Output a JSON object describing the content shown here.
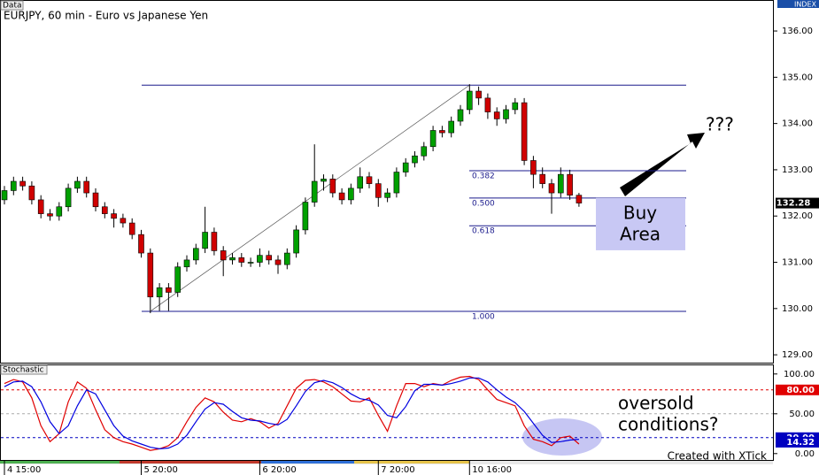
{
  "chart_data": [
    {
      "type": "candlestick",
      "panel_label": "Data",
      "axis_label": "INDEX",
      "title": "EURJPY, 60 min - Euro vs Japanese Yen",
      "ylim": [
        128.83,
        136.67
      ],
      "yticks": [
        {
          "value": 129,
          "label": "129.00"
        },
        {
          "value": 130,
          "label": "130.00"
        },
        {
          "value": 131,
          "label": "131.00"
        },
        {
          "value": 132,
          "label": "132.00"
        },
        {
          "value": 133,
          "label": "133.00"
        },
        {
          "value": 134,
          "label": "134.00"
        },
        {
          "value": 135,
          "label": "135.00"
        },
        {
          "value": 136,
          "label": "136.00"
        }
      ],
      "up_color": "#00a000",
      "down_color": "#d00000",
      "open": [
        132.35,
        132.55,
        132.75,
        132.65,
        132.35,
        132.05,
        132.0,
        132.2,
        132.6,
        132.75,
        132.5,
        132.2,
        132.05,
        131.95,
        131.85,
        131.6,
        131.2,
        130.25,
        130.45,
        130.35,
        130.9,
        131.05,
        131.3,
        131.65,
        131.25,
        131.05,
        131.1,
        131.0,
        131.0,
        131.15,
        131.05,
        130.95,
        131.2,
        131.7,
        132.3,
        132.75,
        132.8,
        132.5,
        132.35,
        132.6,
        132.85,
        132.7,
        132.4,
        132.5,
        132.95,
        133.15,
        133.3,
        133.5,
        133.85,
        133.8,
        134.05,
        134.3,
        134.7,
        134.55,
        134.25,
        134.1,
        134.3,
        134.45,
        133.2,
        132.9,
        132.7,
        132.5,
        132.9,
        132.45
      ],
      "high": [
        132.65,
        132.85,
        132.85,
        132.75,
        132.45,
        132.15,
        132.3,
        132.7,
        132.85,
        132.85,
        132.6,
        132.3,
        132.15,
        132.05,
        131.95,
        131.7,
        131.3,
        130.55,
        130.55,
        131.0,
        131.15,
        131.4,
        132.2,
        131.75,
        131.35,
        131.2,
        131.2,
        131.1,
        131.3,
        131.25,
        131.15,
        131.3,
        131.8,
        132.4,
        133.55,
        132.9,
        132.9,
        132.6,
        132.7,
        133.05,
        132.95,
        132.8,
        132.6,
        133.05,
        133.25,
        133.4,
        133.6,
        133.95,
        133.95,
        134.15,
        134.4,
        134.85,
        134.8,
        134.65,
        134.35,
        134.4,
        134.55,
        134.55,
        133.3,
        133.05,
        132.8,
        133.05,
        133.0,
        132.5
      ],
      "low": [
        132.25,
        132.45,
        132.55,
        132.25,
        131.95,
        131.9,
        131.9,
        132.1,
        132.5,
        132.4,
        132.1,
        131.95,
        131.75,
        131.75,
        131.5,
        131.1,
        129.9,
        129.95,
        129.95,
        130.25,
        130.8,
        130.95,
        131.2,
        131.15,
        130.7,
        130.95,
        130.9,
        130.9,
        130.9,
        130.95,
        130.75,
        130.85,
        131.1,
        131.6,
        132.2,
        132.55,
        132.4,
        132.25,
        132.25,
        132.5,
        132.6,
        132.2,
        132.3,
        132.4,
        132.85,
        133.05,
        133.2,
        133.4,
        133.7,
        133.7,
        133.95,
        134.2,
        134.4,
        134.1,
        133.95,
        134.0,
        134.2,
        133.1,
        132.6,
        132.6,
        132.05,
        132.4,
        132.35,
        132.2
      ],
      "close": [
        132.55,
        132.75,
        132.65,
        132.35,
        132.05,
        132.0,
        132.2,
        132.6,
        132.75,
        132.5,
        132.2,
        132.05,
        131.95,
        131.85,
        131.6,
        131.2,
        130.25,
        130.45,
        130.35,
        130.9,
        131.05,
        131.3,
        131.65,
        131.25,
        131.05,
        131.1,
        131.0,
        131.0,
        131.15,
        131.05,
        130.95,
        131.2,
        131.7,
        132.3,
        132.75,
        132.8,
        132.5,
        132.35,
        132.6,
        132.85,
        132.7,
        132.4,
        132.5,
        132.95,
        133.15,
        133.3,
        133.5,
        133.85,
        133.8,
        134.05,
        134.3,
        134.7,
        134.55,
        134.25,
        134.1,
        134.3,
        134.45,
        133.2,
        132.9,
        132.7,
        132.5,
        132.9,
        132.45,
        132.28
      ],
      "last_price": {
        "value": 132.28,
        "label": "132.28"
      },
      "fib_lines": {
        "values": [
          134.83,
          132.98,
          132.39,
          131.79,
          129.94
        ],
        "labels": [
          null,
          "0.382",
          "0.500",
          "0.618",
          "1.000"
        ],
        "color": "#1a1a8c"
      },
      "trendline": {
        "x": [
          16,
          51
        ],
        "values": [
          129.94,
          134.83
        ]
      },
      "buy_area": {
        "label_lines": [
          "Buy",
          "Area"
        ],
        "top": 132.39,
        "bottom": 131.26,
        "color": "#c8c8f4"
      },
      "annotation": "???"
    },
    {
      "type": "line",
      "panel_label": "Stochastic",
      "ylim": [
        -8,
        112
      ],
      "yticks": [
        {
          "value": 0,
          "label": "0.00"
        },
        {
          "value": 50,
          "label": "50.00"
        },
        {
          "value": 100,
          "label": "100.00"
        }
      ],
      "ref_lines": [
        {
          "value": 80,
          "color": "#e00000"
        },
        {
          "value": 50,
          "color": "#aaaaaa"
        },
        {
          "value": 20,
          "color": "#0000c0"
        }
      ],
      "tags": [
        {
          "value": 80,
          "label": "80.00",
          "color": "#e00000"
        },
        {
          "value": 20,
          "label": "20.00",
          "color": "#0000c0"
        },
        {
          "value": 14.32,
          "label": "14.32",
          "color": "#0000c0"
        }
      ],
      "categories": [
        "4 15:00",
        null,
        null,
        null,
        null,
        null,
        null,
        null,
        null,
        null,
        null,
        null,
        null,
        null,
        null,
        "5 20:00",
        null,
        null,
        null,
        null,
        null,
        null,
        null,
        null,
        null,
        null,
        null,
        null,
        "6 20:00",
        null,
        null,
        null,
        null,
        null,
        null,
        null,
        null,
        null,
        null,
        null,
        null,
        "7 20:00",
        null,
        null,
        null,
        null,
        null,
        null,
        null,
        null,
        null,
        "10 16:00",
        null,
        null,
        null,
        null,
        null,
        null,
        null,
        null,
        null,
        null,
        null,
        null
      ],
      "series": [
        {
          "color": "#e00000",
          "values": [
            88,
            93,
            90,
            70,
            35,
            15,
            25,
            65,
            90,
            82,
            55,
            30,
            20,
            15,
            12,
            8,
            4,
            6,
            10,
            20,
            40,
            58,
            70,
            65,
            52,
            42,
            40,
            44,
            40,
            32,
            38,
            60,
            82,
            92,
            93,
            90,
            84,
            75,
            66,
            65,
            70,
            48,
            28,
            60,
            88,
            88,
            84,
            88,
            86,
            92,
            96,
            97,
            93,
            80,
            68,
            64,
            60,
            35,
            18,
            15,
            10,
            20,
            22,
            12
          ]
        },
        {
          "color": "#0000e0",
          "values": [
            84,
            90,
            91,
            84,
            65,
            40,
            25,
            35,
            60,
            80,
            75,
            55,
            35,
            22,
            16,
            12,
            8,
            6,
            7,
            12,
            23,
            40,
            56,
            64,
            62,
            53,
            45,
            42,
            41,
            38,
            36,
            43,
            60,
            78,
            89,
            92,
            89,
            83,
            75,
            69,
            67,
            61,
            48,
            45,
            59,
            79,
            87,
            87,
            86,
            88,
            91,
            95,
            95,
            90,
            80,
            71,
            64,
            53,
            38,
            23,
            14,
            15,
            17,
            18
          ]
        }
      ],
      "annotation_lines": [
        "oversold",
        "conditions?"
      ],
      "footer": "Created with XTick"
    }
  ]
}
